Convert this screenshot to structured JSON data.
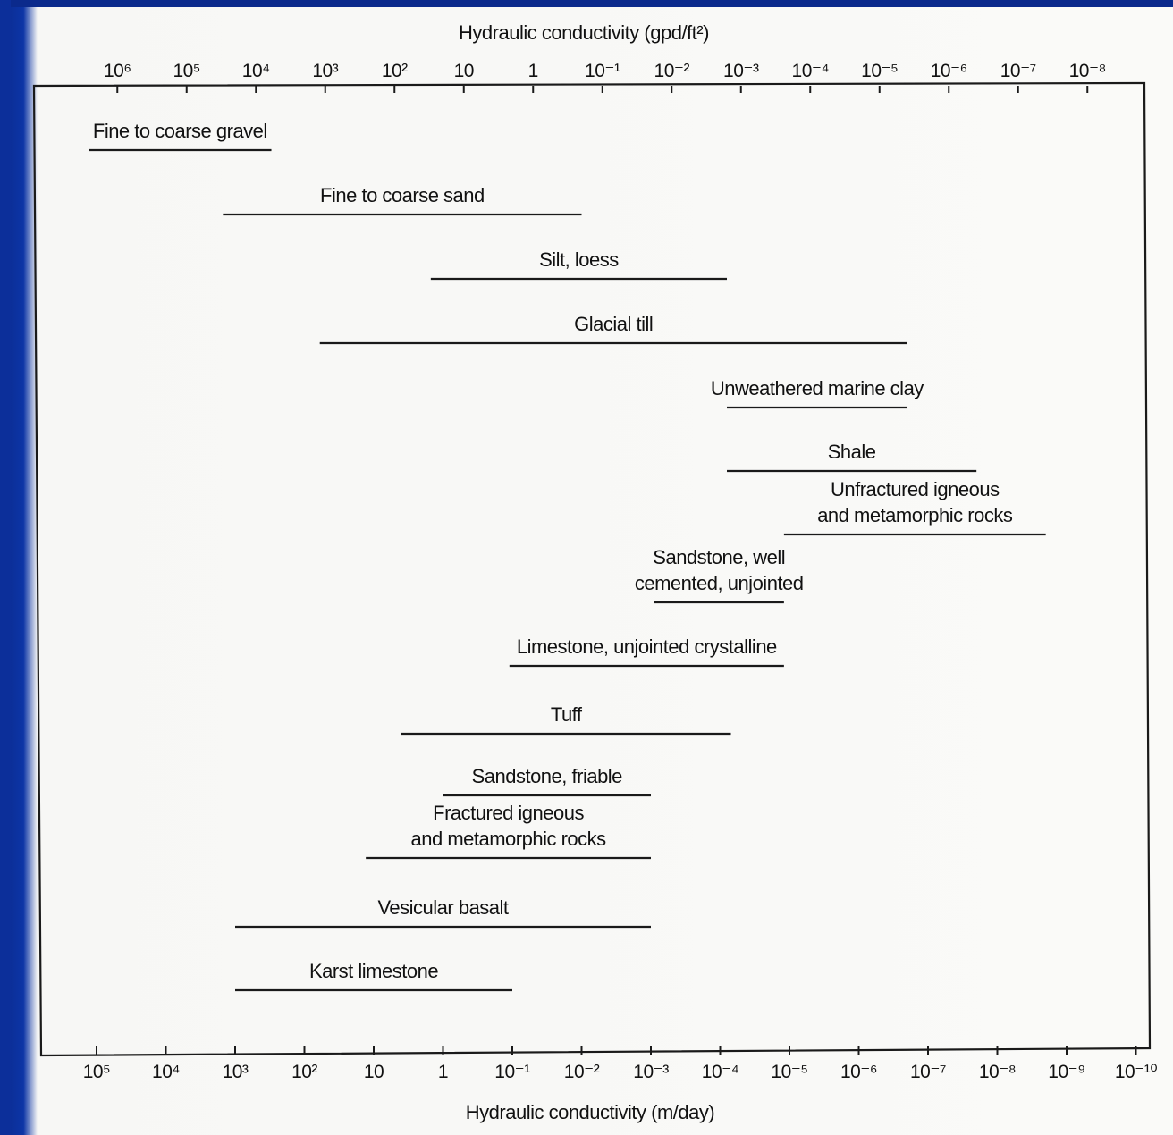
{
  "chart_data": {
    "type": "range",
    "top_axis": {
      "title": "Hydraulic conductivity (gpd/ft²)",
      "ticks": [
        {
          "label": "10⁶",
          "exp": 6
        },
        {
          "label": "10⁵",
          "exp": 5
        },
        {
          "label": "10⁴",
          "exp": 4
        },
        {
          "label": "10³",
          "exp": 3
        },
        {
          "label": "10²",
          "exp": 2
        },
        {
          "label": "10",
          "exp": 1
        },
        {
          "label": "1",
          "exp": 0
        },
        {
          "label": "10⁻¹",
          "exp": -1
        },
        {
          "label": "10⁻²",
          "exp": -2
        },
        {
          "label": "10⁻³",
          "exp": -3
        },
        {
          "label": "10⁻⁴",
          "exp": -4
        },
        {
          "label": "10⁻⁵",
          "exp": -5
        },
        {
          "label": "10⁻⁶",
          "exp": -6
        },
        {
          "label": "10⁻⁷",
          "exp": -7
        },
        {
          "label": "10⁻⁸",
          "exp": -8
        }
      ]
    },
    "bottom_axis": {
      "title": "Hydraulic conductivity (m/day)",
      "ticks": [
        {
          "label": "10⁵",
          "exp": 5
        },
        {
          "label": "10⁴",
          "exp": 4
        },
        {
          "label": "10³",
          "exp": 3
        },
        {
          "label": "10²",
          "exp": 2
        },
        {
          "label": "10",
          "exp": 1
        },
        {
          "label": "1",
          "exp": 0
        },
        {
          "label": "10⁻¹",
          "exp": -1
        },
        {
          "label": "10⁻²",
          "exp": -2
        },
        {
          "label": "10⁻³",
          "exp": -3
        },
        {
          "label": "10⁻⁴",
          "exp": -4
        },
        {
          "label": "10⁻⁵",
          "exp": -5
        },
        {
          "label": "10⁻⁶",
          "exp": -6
        },
        {
          "label": "10⁻⁷",
          "exp": -7
        },
        {
          "label": "10⁻⁸",
          "exp": -8
        },
        {
          "label": "10⁻⁹",
          "exp": -9
        },
        {
          "label": "10⁻¹⁰",
          "exp": -10
        }
      ]
    },
    "series": [
      {
        "label": [
          "Fine to coarse gravel"
        ],
        "range_m_per_day": [
          130000,
          300
        ]
      },
      {
        "label": [
          "Fine to coarse sand"
        ],
        "range_m_per_day": [
          1500,
          0.01
        ]
      },
      {
        "label": [
          "Silt, loess"
        ],
        "range_m_per_day": [
          1.5,
          8e-05
        ]
      },
      {
        "label": [
          "Glacial till"
        ],
        "range_m_per_day": [
          60,
          2e-07
        ]
      },
      {
        "label": [
          "Unweathered marine clay"
        ],
        "range_m_per_day": [
          8e-05,
          2e-07
        ]
      },
      {
        "label": [
          "Shale"
        ],
        "range_m_per_day": [
          8e-05,
          2e-08
        ]
      },
      {
        "label": [
          "Unfractured igneous",
          "and metamorphic rocks"
        ],
        "range_m_per_day": [
          1.2e-05,
          2e-09
        ]
      },
      {
        "label": [
          "Sandstone, well",
          "cemented, unjointed"
        ],
        "range_m_per_day": [
          0.0009,
          1.2e-05
        ]
      },
      {
        "label": [
          "Limestone, unjointed crystalline"
        ],
        "range_m_per_day": [
          0.11,
          1.2e-05
        ]
      },
      {
        "label": [
          "Tuff"
        ],
        "range_m_per_day": [
          4,
          7e-05
        ]
      },
      {
        "label": [
          "Sandstone, friable"
        ],
        "range_m_per_day": [
          1,
          0.001
        ]
      },
      {
        "label": [
          "Fractured igneous",
          "and metamorphic rocks"
        ],
        "range_m_per_day": [
          13,
          0.001
        ]
      },
      {
        "label": [
          "Vesicular basalt"
        ],
        "range_m_per_day": [
          1000,
          0.001
        ]
      },
      {
        "label": [
          "Karst limestone"
        ],
        "range_m_per_day": [
          1000,
          0.1
        ]
      }
    ]
  }
}
